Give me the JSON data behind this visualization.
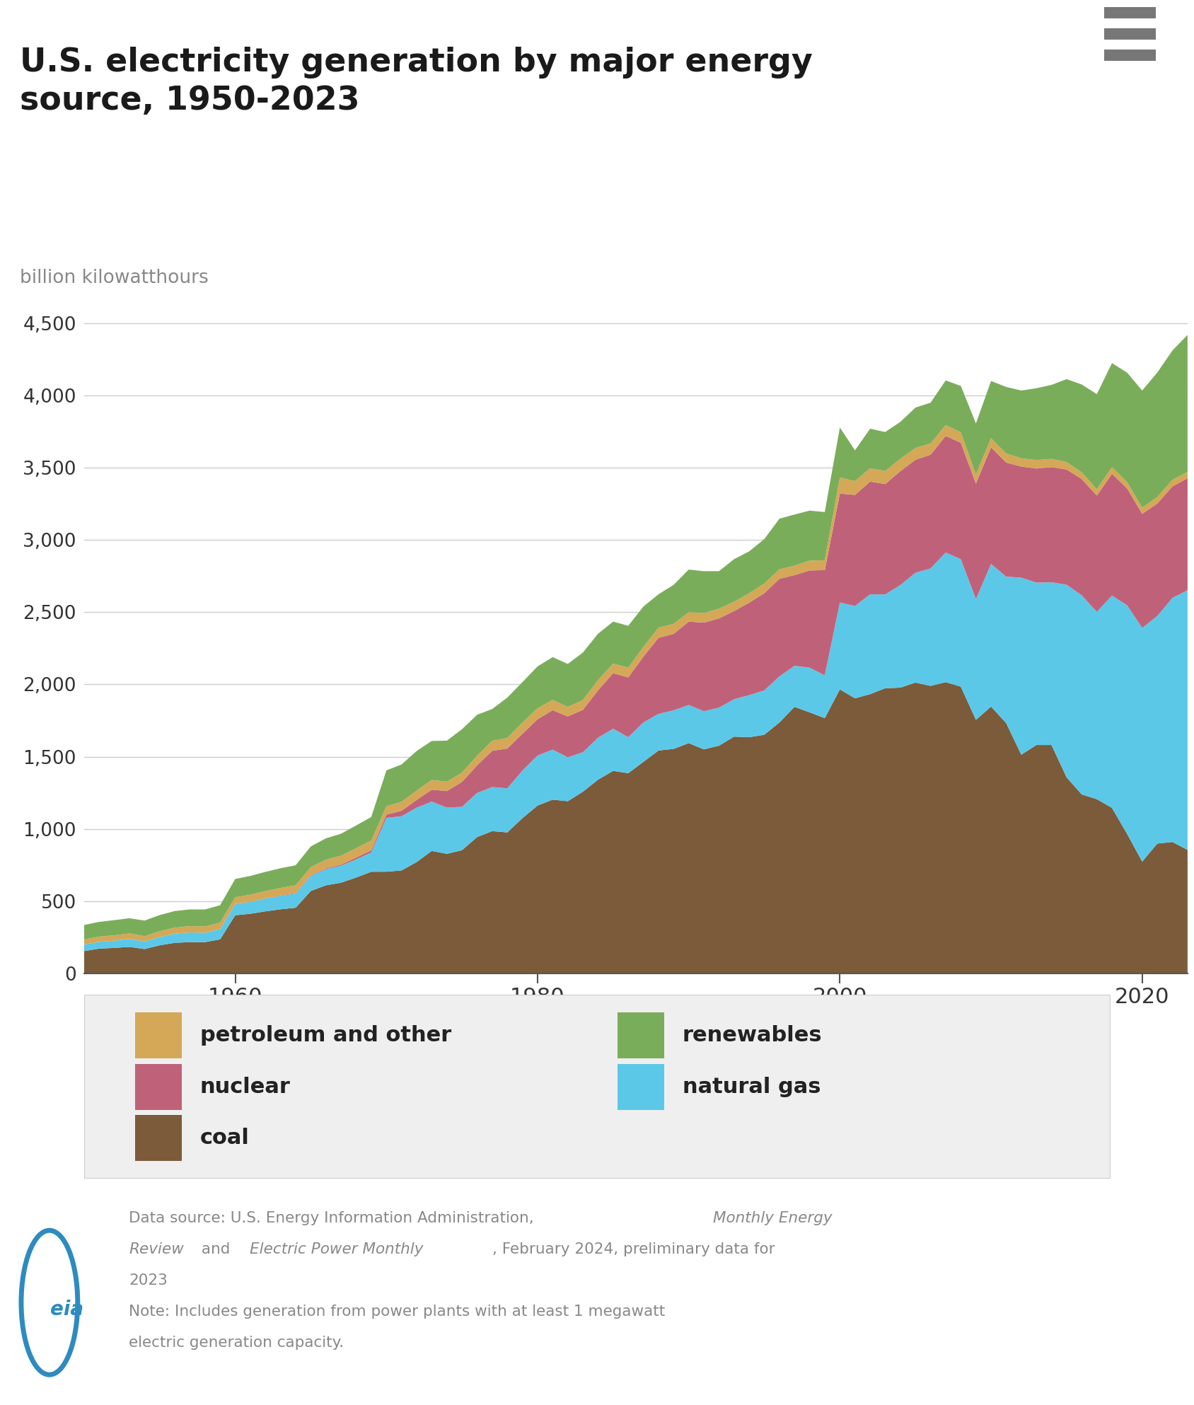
{
  "title": "U.S. electricity generation by major energy\nsource, 1950-2023",
  "ylabel": "billion kilowatthours",
  "background_color": "#ffffff",
  "grid_color": "#cccccc",
  "years": [
    1950,
    1951,
    1952,
    1953,
    1954,
    1955,
    1956,
    1957,
    1958,
    1959,
    1960,
    1961,
    1962,
    1963,
    1964,
    1965,
    1966,
    1967,
    1968,
    1969,
    1970,
    1971,
    1972,
    1973,
    1974,
    1975,
    1976,
    1977,
    1978,
    1979,
    1980,
    1981,
    1982,
    1983,
    1984,
    1985,
    1986,
    1987,
    1988,
    1989,
    1990,
    1991,
    1992,
    1993,
    1994,
    1995,
    1996,
    1997,
    1998,
    1999,
    2000,
    2001,
    2002,
    2003,
    2004,
    2005,
    2006,
    2007,
    2008,
    2009,
    2010,
    2011,
    2012,
    2013,
    2014,
    2015,
    2016,
    2017,
    2018,
    2019,
    2020,
    2021,
    2022,
    2023
  ],
  "coal": [
    155,
    172,
    177,
    184,
    169,
    195,
    212,
    217,
    217,
    236,
    403,
    413,
    430,
    444,
    455,
    571,
    610,
    628,
    664,
    704,
    704,
    713,
    771,
    848,
    828,
    853,
    944,
    985,
    976,
    1075,
    1162,
    1203,
    1192,
    1258,
    1341,
    1402,
    1386,
    1464,
    1543,
    1554,
    1594,
    1551,
    1576,
    1639,
    1635,
    1652,
    1737,
    1845,
    1807,
    1767,
    1966,
    1904,
    1933,
    1974,
    1978,
    2013,
    1990,
    2016,
    1985,
    1755,
    1847,
    1733,
    1514,
    1581,
    1581,
    1357,
    1239,
    1206,
    1146,
    966,
    774,
    899,
    910,
    855
  ],
  "natural_gas": [
    45,
    47,
    50,
    55,
    53,
    57,
    63,
    67,
    65,
    71,
    77,
    82,
    88,
    93,
    98,
    105,
    112,
    118,
    125,
    134,
    373,
    375,
    376,
    341,
    320,
    300,
    305,
    305,
    305,
    329,
    346,
    346,
    304,
    273,
    290,
    292,
    249,
    273,
    253,
    267,
    264,
    264,
    263,
    259,
    291,
    307,
    319,
    284,
    309,
    296,
    601,
    639,
    691,
    649,
    710,
    760,
    813,
    897,
    882,
    836,
    987,
    1013,
    1225,
    1124,
    1126,
    1333,
    1378,
    1296,
    1469,
    1582,
    1617,
    1575,
    1689,
    1797
  ],
  "nuclear": [
    0,
    0,
    0,
    0,
    0,
    0,
    0,
    0,
    0,
    0,
    1,
    2,
    2,
    3,
    4,
    4,
    5,
    7,
    13,
    14,
    22,
    38,
    54,
    83,
    114,
    173,
    191,
    251,
    276,
    255,
    251,
    273,
    283,
    294,
    328,
    384,
    414,
    455,
    527,
    529,
    577,
    613,
    618,
    610,
    640,
    673,
    675,
    628,
    673,
    728,
    754,
    769,
    780,
    764,
    788,
    782,
    787,
    807,
    806,
    799,
    807,
    790,
    769,
    789,
    797,
    798,
    805,
    805,
    843,
    809,
    790,
    778,
    772,
    775
  ],
  "petroleum_other": [
    35,
    36,
    37,
    38,
    36,
    40,
    42,
    44,
    43,
    45,
    46,
    48,
    50,
    52,
    53,
    56,
    60,
    62,
    65,
    68,
    58,
    62,
    64,
    67,
    65,
    63,
    67,
    69,
    73,
    77,
    76,
    71,
    65,
    67,
    71,
    66,
    67,
    67,
    70,
    69,
    65,
    66,
    67,
    64,
    65,
    66,
    66,
    65,
    68,
    69,
    111,
    95,
    92,
    90,
    85,
    82,
    77,
    75,
    72,
    63,
    63,
    62,
    57,
    59,
    57,
    51,
    46,
    44,
    46,
    43,
    42,
    45,
    45,
    44
  ],
  "renewables": [
    100,
    102,
    105,
    105,
    108,
    112,
    115,
    115,
    118,
    120,
    127,
    130,
    133,
    136,
    139,
    143,
    148,
    152,
    157,
    163,
    248,
    258,
    274,
    270,
    284,
    301,
    283,
    220,
    279,
    280,
    290,
    296,
    298,
    329,
    321,
    291,
    290,
    280,
    231,
    270,
    295,
    290,
    260,
    295,
    290,
    308,
    350,
    354,
    346,
    333,
    346,
    213,
    274,
    270,
    256,
    279,
    283,
    309,
    321,
    353,
    396,
    461,
    469,
    497,
    512,
    574,
    608,
    658,
    720,
    758,
    811,
    862,
    895,
    948
  ],
  "colors": {
    "coal": "#7B5B3A",
    "natural_gas": "#5BC8E8",
    "nuclear": "#C0617A",
    "petroleum_other": "#D4A857",
    "renewables": "#7AAD5A"
  },
  "ylim": [
    0,
    4700
  ],
  "yticks": [
    0,
    500,
    1000,
    1500,
    2000,
    2500,
    3000,
    3500,
    4000,
    4500
  ],
  "xticks": [
    1960,
    1980,
    2000,
    2020
  ]
}
